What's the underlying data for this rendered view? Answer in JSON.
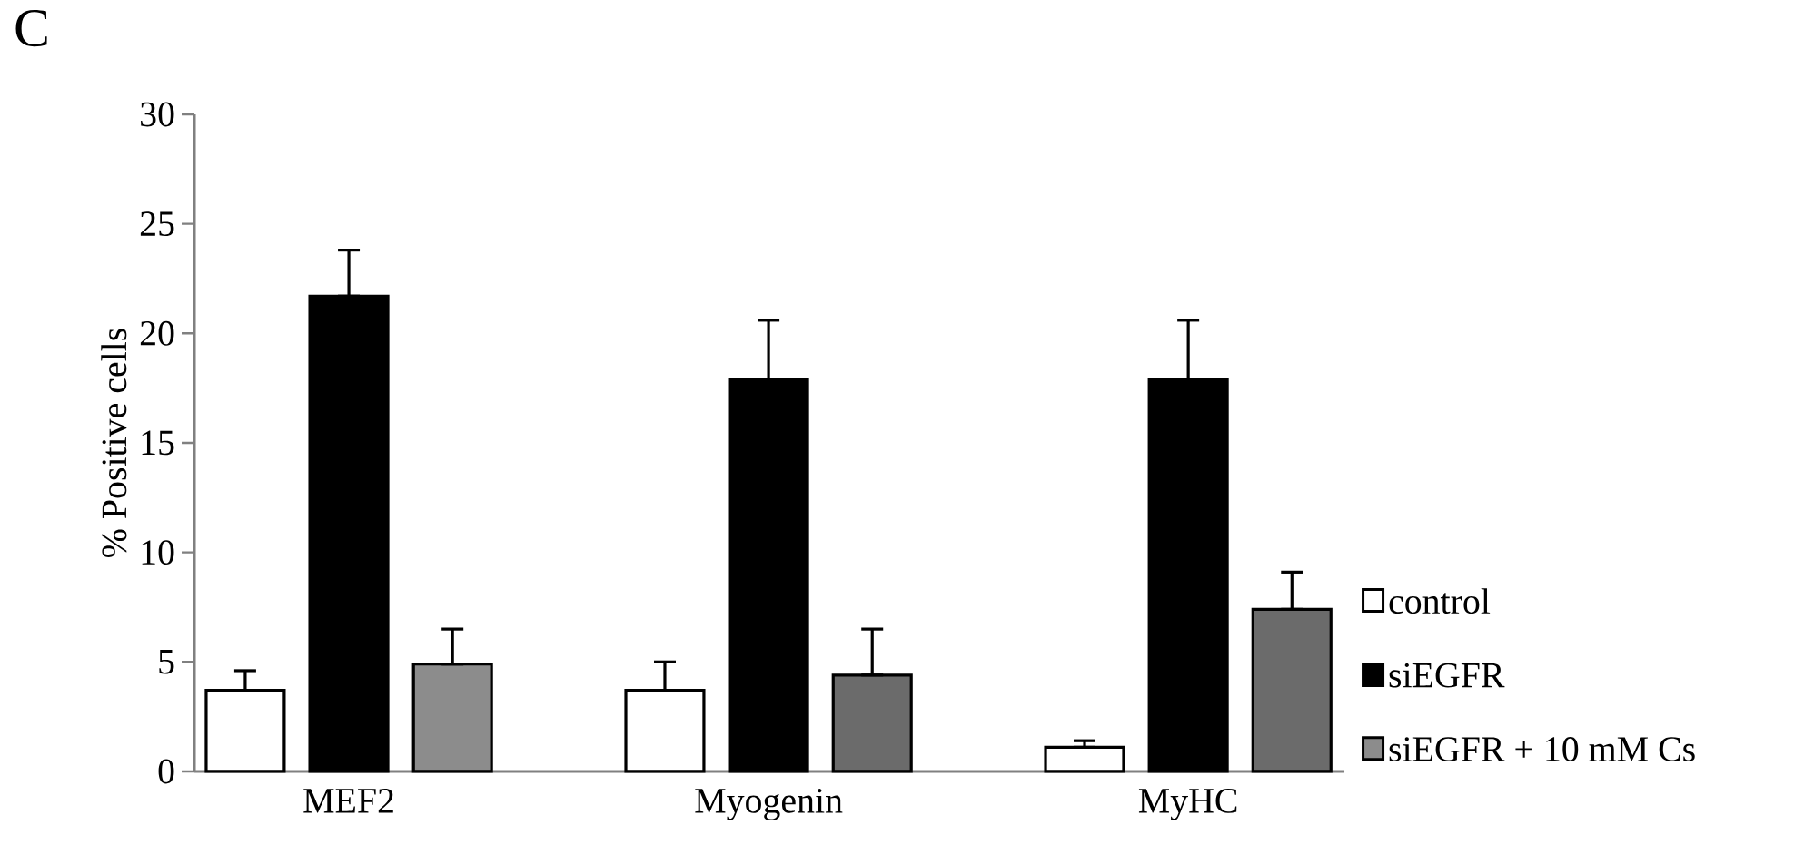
{
  "chart_data": {
    "type": "bar",
    "ylabel": "% Positive cells",
    "annotations": [
      "C"
    ],
    "categories": [
      "MEF2",
      "Myogenin",
      "MyHC"
    ],
    "series": [
      {
        "name": "control",
        "color": "#ffffff",
        "values": [
          3.7,
          3.7,
          1.1
        ],
        "errors": [
          [
            3.7,
            4.6
          ],
          [
            3.7,
            5.0
          ],
          [
            1.1,
            1.4
          ]
        ]
      },
      {
        "name": "siEGFR",
        "color": "#000000",
        "values": [
          21.7,
          17.9,
          17.9
        ],
        "errors": [
          [
            21.7,
            23.8
          ],
          [
            17.9,
            20.6
          ],
          [
            17.9,
            20.6
          ]
        ]
      },
      {
        "name": "siEGFR + 10 mM Cs",
        "color": "#8c8c8c",
        "colors": [
          "#8c8c8c",
          "#6b6b6b",
          "#6b6b6b"
        ],
        "values": [
          4.9,
          4.4,
          7.4
        ],
        "errors": [
          [
            4.9,
            6.5
          ],
          [
            4.4,
            6.5
          ],
          [
            7.4,
            9.1
          ]
        ]
      }
    ],
    "ylim": [
      0,
      30
    ],
    "yticks": [
      0,
      5,
      10,
      15,
      20,
      25,
      30
    ],
    "grid": false,
    "legend": "right"
  }
}
